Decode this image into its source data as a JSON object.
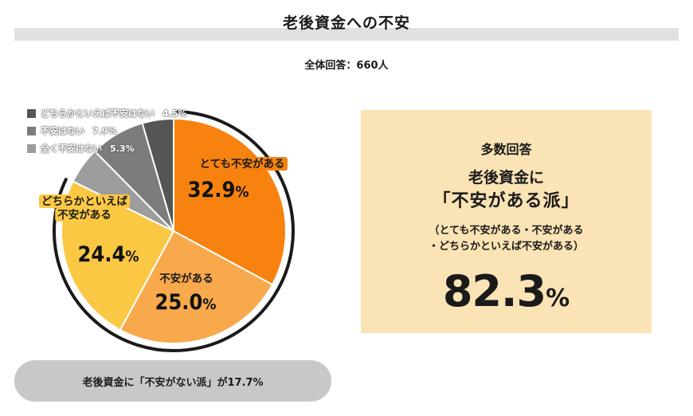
{
  "header": {
    "title": "老後資金への不安",
    "subtitle": "全体回答：660人"
  },
  "chart_data": {
    "type": "pie",
    "title": "老後資金への不安",
    "subtitle": "全体回答：660人",
    "start_angle_deg": 0,
    "direction": "clockwise",
    "slices": [
      {
        "label": "とても不安がある",
        "value": 32.9,
        "display": "32.9",
        "unit": "%",
        "color": "#f7820f",
        "label_bg": "#f7820f"
      },
      {
        "label": "不安がある",
        "value": 25.0,
        "display": "25.0",
        "unit": "%",
        "color": "#f8a94c",
        "label_bg": ""
      },
      {
        "label_lines": [
          "どちらかといえば",
          "不安がある"
        ],
        "label": "どちらかといえば不安がある",
        "value": 24.4,
        "display": "24.4",
        "unit": "%",
        "color": "#fbc844",
        "label_bg": "#fbc844"
      },
      {
        "label": "全く不安はない",
        "value": 5.3,
        "unit": "%",
        "color": "#9d9d9d",
        "legend": true
      },
      {
        "label": "不安はない",
        "value": 7.9,
        "unit": "%",
        "color": "#7c7c7c",
        "legend": true
      },
      {
        "label": "どちらかといえば不安はない",
        "value": 4.5,
        "unit": "%",
        "color": "#555555",
        "legend": true
      }
    ],
    "legend": [
      {
        "label": "どちらかといえば不安はない",
        "pct": "4.5%",
        "color": "#555555"
      },
      {
        "label": "不安はない",
        "pct": "7.9%",
        "color": "#7c7c7c"
      },
      {
        "label": "全く不安はない",
        "pct": "5.3%",
        "color": "#9d9d9d"
      }
    ],
    "legend_position": "top-left"
  },
  "summary": {
    "heading": "多数回答",
    "line1": "老後資金に",
    "line2": "「不安がある派」",
    "paren1": "（とても不安がある・不安がある",
    "paren2": "・どちらかといえば不安がある）",
    "value": "82.3",
    "unit": "%",
    "bg_color": "#fae3b4"
  },
  "footer": {
    "note": "老後資金に「不安がない派」が17.7%"
  }
}
